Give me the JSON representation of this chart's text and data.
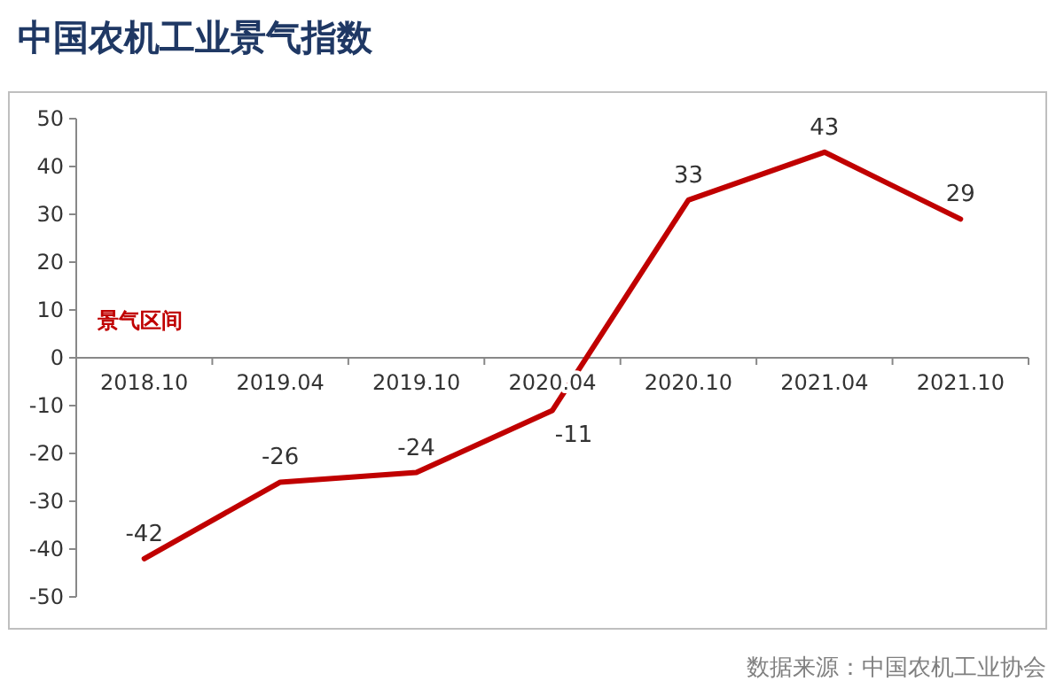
{
  "chart_data": {
    "type": "line",
    "title": "中国农机工业景气指数",
    "categories": [
      "2018.10",
      "2019.04",
      "2019.10",
      "2020.04",
      "2020.10",
      "2021.04",
      "2021.10"
    ],
    "series": [
      {
        "color": "#c00000",
        "values": [
          -42,
          -26,
          -24,
          -11,
          33,
          43,
          29
        ]
      }
    ],
    "ylim": [
      -50,
      50
    ],
    "yticks": [
      -50,
      -40,
      -30,
      -20,
      -10,
      0,
      10,
      20,
      30,
      40,
      50
    ],
    "data_labels": true,
    "grid": false,
    "marker": "none",
    "line_style": "solid",
    "annotations": [
      "景气区间",
      "数据来源：中国农机工业协会"
    ]
  }
}
